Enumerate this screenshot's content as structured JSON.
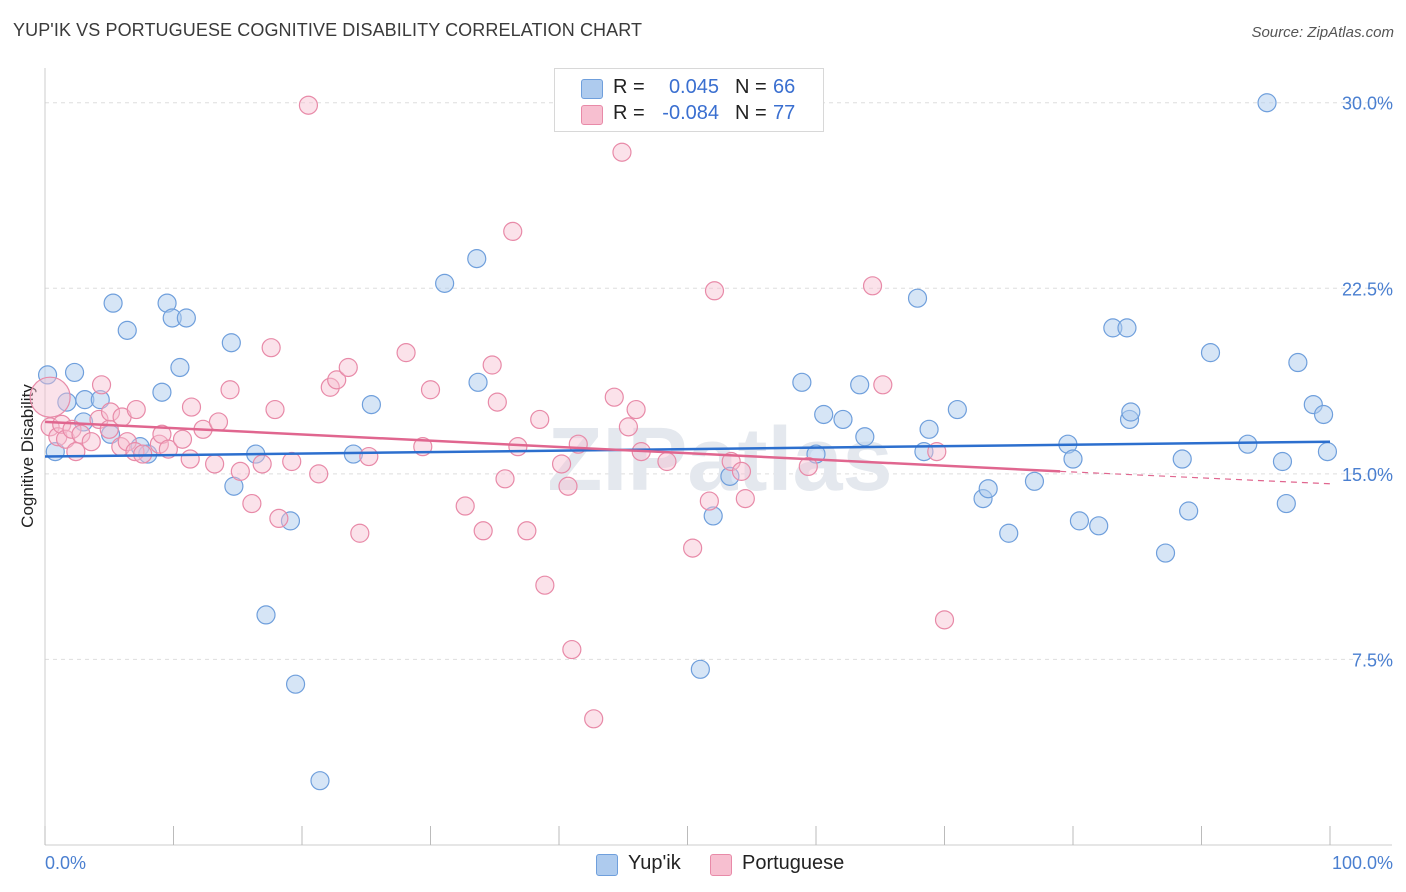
{
  "header": {
    "title": "YUP'IK VS PORTUGUESE COGNITIVE DISABILITY CORRELATION CHART",
    "source": "Source: ZipAtlas.com"
  },
  "watermark": "ZIPatlas",
  "legend_top": {
    "rows": [
      {
        "r_label": "R =",
        "r_value": "0.045",
        "n_label": "N =",
        "n_value": "66"
      },
      {
        "r_label": "R =",
        "r_value": "-0.084",
        "n_label": "N =",
        "n_value": "77"
      }
    ]
  },
  "legend_bottom": {
    "items": [
      "Yup'ik",
      "Portuguese"
    ]
  },
  "colors": {
    "blue_fill": "#aecbee",
    "blue_stroke": "#6f9fdc",
    "blue_line": "#2c6fce",
    "pink_fill": "#f7bfd0",
    "pink_stroke": "#e88aa8",
    "pink_line": "#e0668f",
    "grid": "#dedede",
    "tick_text": "#4a7fd0"
  },
  "chart_data": {
    "type": "scatter",
    "title": "YUP'IK VS PORTUGUESE COGNITIVE DISABILITY CORRELATION CHART",
    "xlabel": "",
    "ylabel": "Cognitive Disability",
    "xlim": [
      0,
      100
    ],
    "ylim": [
      0,
      31
    ],
    "x_tick_labels": [
      "0.0%",
      "100.0%"
    ],
    "y_ticks": [
      7.5,
      15.0,
      22.5,
      30.0
    ],
    "y_tick_labels": [
      "7.5%",
      "15.0%",
      "22.5%",
      "30.0%"
    ],
    "grid": true,
    "legend_position": "top-center",
    "series": [
      {
        "name": "Yup'ik",
        "color": "#6f9fdc",
        "trend": {
          "x": [
            0,
            100
          ],
          "y": [
            15.7,
            16.3
          ]
        },
        "points": [
          [
            0.2,
            19.0
          ],
          [
            0.8,
            15.9
          ],
          [
            1.7,
            17.9
          ],
          [
            2.3,
            19.1
          ],
          [
            3.0,
            17.1
          ],
          [
            3.1,
            18.0
          ],
          [
            4.3,
            18.0
          ],
          [
            5.1,
            16.6
          ],
          [
            5.3,
            21.9
          ],
          [
            6.4,
            20.8
          ],
          [
            7.4,
            16.1
          ],
          [
            8.0,
            15.8
          ],
          [
            9.1,
            18.3
          ],
          [
            9.5,
            21.9
          ],
          [
            9.9,
            21.3
          ],
          [
            10.5,
            19.3
          ],
          [
            11.0,
            21.3
          ],
          [
            14.5,
            20.3
          ],
          [
            14.7,
            14.5
          ],
          [
            16.4,
            15.8
          ],
          [
            17.2,
            9.3
          ],
          [
            19.1,
            13.1
          ],
          [
            19.5,
            6.5
          ],
          [
            21.4,
            2.6
          ],
          [
            24.0,
            15.8
          ],
          [
            25.4,
            17.8
          ],
          [
            31.1,
            22.7
          ],
          [
            33.6,
            23.7
          ],
          [
            33.7,
            18.7
          ],
          [
            51.0,
            7.1
          ],
          [
            52.0,
            13.3
          ],
          [
            53.3,
            14.9
          ],
          [
            58.9,
            18.7
          ],
          [
            60.0,
            15.8
          ],
          [
            60.6,
            17.4
          ],
          [
            62.1,
            17.2
          ],
          [
            63.4,
            18.6
          ],
          [
            63.8,
            16.5
          ],
          [
            67.9,
            22.1
          ],
          [
            68.4,
            15.9
          ],
          [
            68.8,
            16.8
          ],
          [
            71.0,
            17.6
          ],
          [
            73.0,
            14.0
          ],
          [
            73.4,
            14.4
          ],
          [
            75.0,
            12.6
          ],
          [
            77.0,
            14.7
          ],
          [
            79.6,
            16.2
          ],
          [
            80.0,
            15.6
          ],
          [
            80.5,
            13.1
          ],
          [
            82.0,
            12.9
          ],
          [
            83.1,
            20.9
          ],
          [
            84.2,
            20.9
          ],
          [
            84.4,
            17.2
          ],
          [
            84.5,
            17.5
          ],
          [
            87.2,
            11.8
          ],
          [
            88.5,
            15.6
          ],
          [
            89.0,
            13.5
          ],
          [
            90.7,
            19.9
          ],
          [
            93.6,
            16.2
          ],
          [
            95.1,
            30.0
          ],
          [
            96.3,
            15.5
          ],
          [
            96.6,
            13.8
          ],
          [
            97.5,
            19.5
          ],
          [
            98.7,
            17.8
          ],
          [
            99.5,
            17.4
          ],
          [
            99.8,
            15.9
          ]
        ]
      },
      {
        "name": "Portuguese",
        "color": "#e88aa8",
        "trend": {
          "x": [
            0,
            79
          ],
          "y": [
            17.1,
            15.1
          ]
        },
        "trend_dashed": {
          "x": [
            79,
            100
          ],
          "y": [
            15.1,
            14.6
          ]
        },
        "points": [
          [
            0.4,
            16.9
          ],
          [
            1.0,
            16.5
          ],
          [
            1.3,
            17.0
          ],
          [
            1.6,
            16.4
          ],
          [
            2.1,
            16.8
          ],
          [
            2.4,
            15.9
          ],
          [
            2.8,
            16.6
          ],
          [
            3.6,
            16.3
          ],
          [
            4.2,
            17.2
          ],
          [
            4.4,
            18.6
          ],
          [
            5.0,
            16.8
          ],
          [
            5.1,
            17.5
          ],
          [
            5.9,
            16.1
          ],
          [
            6.0,
            17.3
          ],
          [
            6.4,
            16.3
          ],
          [
            7.0,
            15.9
          ],
          [
            7.1,
            17.6
          ],
          [
            7.6,
            15.8
          ],
          [
            8.9,
            16.2
          ],
          [
            9.1,
            16.6
          ],
          [
            9.6,
            16.0
          ],
          [
            10.7,
            16.4
          ],
          [
            11.3,
            15.6
          ],
          [
            11.4,
            17.7
          ],
          [
            12.3,
            16.8
          ],
          [
            13.2,
            15.4
          ],
          [
            13.5,
            17.1
          ],
          [
            14.4,
            18.4
          ],
          [
            15.2,
            15.1
          ],
          [
            16.1,
            13.8
          ],
          [
            16.9,
            15.4
          ],
          [
            17.6,
            20.1
          ],
          [
            17.9,
            17.6
          ],
          [
            18.2,
            13.2
          ],
          [
            19.2,
            15.5
          ],
          [
            20.5,
            29.9
          ],
          [
            21.3,
            15.0
          ],
          [
            22.2,
            18.5
          ],
          [
            22.7,
            18.8
          ],
          [
            23.6,
            19.3
          ],
          [
            24.5,
            12.6
          ],
          [
            25.2,
            15.7
          ],
          [
            28.1,
            19.9
          ],
          [
            29.4,
            16.1
          ],
          [
            30.0,
            18.4
          ],
          [
            32.7,
            13.7
          ],
          [
            34.1,
            12.7
          ],
          [
            34.8,
            19.4
          ],
          [
            35.2,
            17.9
          ],
          [
            35.8,
            14.8
          ],
          [
            36.4,
            24.8
          ],
          [
            36.8,
            16.1
          ],
          [
            37.5,
            12.7
          ],
          [
            38.5,
            17.2
          ],
          [
            38.9,
            10.5
          ],
          [
            40.2,
            15.4
          ],
          [
            40.7,
            14.5
          ],
          [
            41.0,
            7.9
          ],
          [
            41.5,
            16.2
          ],
          [
            42.7,
            5.1
          ],
          [
            44.3,
            18.1
          ],
          [
            44.9,
            28.0
          ],
          [
            45.4,
            16.9
          ],
          [
            46.0,
            17.6
          ],
          [
            46.4,
            15.9
          ],
          [
            48.4,
            15.5
          ],
          [
            50.4,
            12.0
          ],
          [
            51.7,
            13.9
          ],
          [
            52.1,
            22.4
          ],
          [
            53.4,
            15.5
          ],
          [
            54.2,
            15.1
          ],
          [
            54.5,
            14.0
          ],
          [
            59.4,
            15.3
          ],
          [
            64.4,
            22.6
          ],
          [
            65.2,
            18.6
          ],
          [
            69.4,
            15.9
          ],
          [
            70.0,
            9.1
          ]
        ]
      }
    ]
  }
}
